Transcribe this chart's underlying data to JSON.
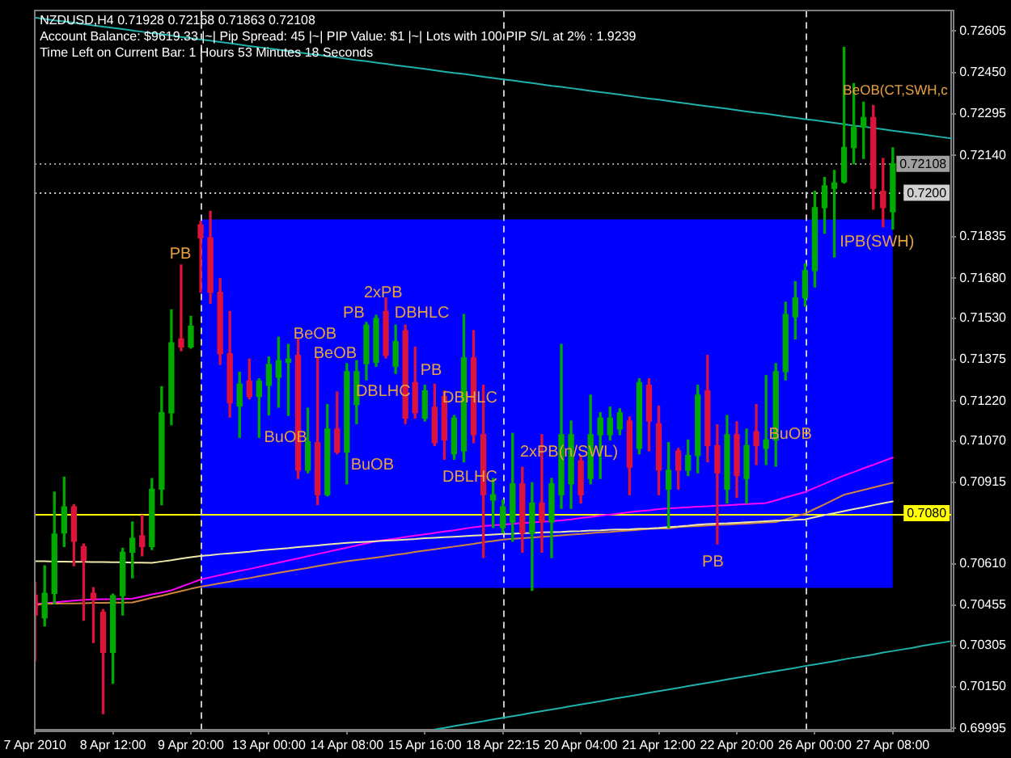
{
  "chart_data": {
    "type": "candlestick",
    "title": "NZDUSD,H4 0.71928 0.72168 0.71863 0.72108",
    "categories": [
      "7 Apr 2010",
      null,
      null,
      null,
      null,
      null,
      null,
      null,
      "8 Apr 12:00",
      null,
      null,
      null,
      null,
      null,
      null,
      null,
      "9 Apr 20:00",
      null,
      null,
      null,
      null,
      null,
      null,
      null,
      "13 Apr 00:00",
      null,
      null,
      null,
      null,
      null,
      null,
      null,
      "14 Apr 08:00",
      null,
      null,
      null,
      null,
      null,
      null,
      null,
      "15 Apr 16:00",
      null,
      null,
      null,
      null,
      null,
      null,
      null,
      "18 Apr 22:15",
      null,
      null,
      null,
      null,
      null,
      null,
      null,
      "20 Apr 04:00",
      null,
      null,
      null,
      null,
      null,
      null,
      null,
      "21 Apr 12:00",
      null,
      null,
      null,
      null,
      null,
      null,
      null,
      "22 Apr 20:00",
      null,
      null,
      null,
      null,
      null,
      null,
      null,
      "26 Apr 00:00",
      null,
      null,
      null,
      null,
      null,
      null,
      null,
      "27 Apr 08:00",
      null,
      null,
      null,
      null,
      null,
      null
    ],
    "ohlc": [
      [
        0.70493,
        0.70542,
        0.70247,
        0.70419
      ],
      [
        0.70408,
        0.70603,
        0.70378,
        0.705
      ],
      [
        0.705,
        0.70879,
        0.7046,
        0.70722
      ],
      [
        0.70726,
        0.70935,
        0.70675,
        0.70824
      ],
      [
        0.70824,
        0.70832,
        0.70603,
        0.70695
      ],
      [
        0.70675,
        0.70685,
        0.70399,
        0.70623
      ],
      [
        0.705,
        0.70521,
        0.70316,
        0.7048
      ],
      [
        0.70429,
        0.70439,
        0.7005,
        0.70279
      ],
      [
        0.70279,
        0.70497,
        0.70163,
        0.70491
      ],
      [
        0.70491,
        0.70669,
        0.70419,
        0.70654
      ],
      [
        0.70654,
        0.70767,
        0.70558,
        0.70706
      ],
      [
        0.70715,
        0.70792,
        0.7064,
        0.70675
      ],
      [
        0.70675,
        0.7093,
        0.70664,
        0.7089
      ],
      [
        0.7089,
        0.71274,
        0.70832,
        0.71176
      ],
      [
        0.71176,
        0.71561,
        0.71131,
        0.71438
      ],
      [
        0.71452,
        0.71729,
        0.71409,
        0.71422
      ],
      [
        0.71422,
        0.71537,
        0.71418,
        0.715
      ],
      [
        0.7188,
        0.71893,
        0.71627,
        0.71831
      ],
      [
        0.71831,
        0.7193,
        0.71586,
        0.71627
      ],
      [
        0.71627,
        0.71678,
        0.71357,
        0.71397
      ],
      [
        0.71397,
        0.71555,
        0.7116,
        0.71213
      ],
      [
        0.71201,
        0.71328,
        0.71084,
        0.71283
      ],
      [
        0.71295,
        0.71377,
        0.71228,
        0.71237
      ],
      [
        0.71237,
        0.71303,
        0.71084,
        0.71295
      ],
      [
        0.71279,
        0.71385,
        0.71168,
        0.71357
      ],
      [
        0.71309,
        0.71459,
        0.71197,
        0.71371
      ],
      [
        0.71365,
        0.71432,
        0.71166,
        0.71377
      ],
      [
        0.71391,
        0.71452,
        0.7093,
        0.70961
      ],
      [
        0.70961,
        0.71193,
        0.70951,
        0.71068
      ],
      [
        0.71064,
        0.71381,
        0.70832,
        0.70869
      ],
      [
        0.70869,
        0.71207,
        0.70865,
        0.71115
      ],
      [
        0.71115,
        0.71254,
        0.71022,
        0.71029
      ],
      [
        0.71029,
        0.7136,
        0.7091,
        0.7133
      ],
      [
        0.71207,
        0.71371,
        0.71135,
        0.7133
      ],
      [
        0.7136,
        0.71514,
        0.71299,
        0.71504
      ],
      [
        0.71365,
        0.71541,
        0.7135,
        0.71529
      ],
      [
        0.71555,
        0.71606,
        0.71381,
        0.71391
      ],
      [
        0.7135,
        0.71504,
        0.71323,
        0.71443
      ],
      [
        0.71483,
        0.71504,
        0.71135,
        0.71156
      ],
      [
        0.71289,
        0.71422,
        0.71156,
        0.71176
      ],
      [
        0.71156,
        0.71279,
        0.71145,
        0.71258
      ],
      [
        0.71197,
        0.71283,
        0.71053,
        0.71064
      ],
      [
        0.71237,
        0.71258,
        0.71002,
        0.71074
      ],
      [
        0.71022,
        0.71166,
        0.71002,
        0.71156
      ],
      [
        0.71033,
        0.71544,
        0.70992,
        0.71381
      ],
      [
        0.71381,
        0.71483,
        0.71064,
        0.71094
      ],
      [
        0.71094,
        0.71279,
        0.70634,
        0.70869
      ],
      [
        0.70849,
        0.7093,
        0.70746,
        0.70869
      ],
      [
        0.70746,
        0.70849,
        0.70726,
        0.70824
      ],
      [
        0.70767,
        0.71099,
        0.70695,
        0.7091
      ],
      [
        0.7091,
        0.70972,
        0.70654,
        0.70726
      ],
      [
        0.70726,
        0.70914,
        0.70511,
        0.70838
      ],
      [
        0.70838,
        0.71094,
        0.70654,
        0.70767
      ],
      [
        0.70767,
        0.7093,
        0.70634,
        0.7091
      ],
      [
        0.70869,
        0.71432,
        0.70818,
        0.71094
      ],
      [
        0.7091,
        0.71145,
        0.70818,
        0.71094
      ],
      [
        0.70996,
        0.71013,
        0.70838,
        0.70869
      ],
      [
        0.7093,
        0.71242,
        0.7091,
        0.71094
      ],
      [
        0.71094,
        0.71176,
        0.7093,
        0.71156
      ],
      [
        0.71094,
        0.71197,
        0.71074,
        0.71156
      ],
      [
        0.71115,
        0.71191,
        0.71094,
        0.71176
      ],
      [
        0.71145,
        0.7116,
        0.70869,
        0.70972
      ],
      [
        0.71043,
        0.71303,
        0.71022,
        0.71289
      ],
      [
        0.71279,
        0.71303,
        0.71033,
        0.71145
      ],
      [
        0.71135,
        0.71201,
        0.70869,
        0.70961
      ],
      [
        0.7089,
        0.71064,
        0.70746,
        0.70961
      ],
      [
        0.71033,
        0.71043,
        0.7089,
        0.70961
      ],
      [
        0.70961,
        0.71074,
        0.70941,
        0.71016
      ],
      [
        0.71016,
        0.71279,
        0.70951,
        0.71242
      ],
      [
        0.71258,
        0.71391,
        0.70992,
        0.71053
      ],
      [
        0.71053,
        0.71131,
        0.70685,
        0.70951
      ],
      [
        0.7089,
        0.71166,
        0.70838,
        0.71094
      ],
      [
        0.71094,
        0.71142,
        0.70859,
        0.70941
      ],
      [
        0.7093,
        0.71115,
        0.70838,
        0.71053
      ],
      [
        0.71105,
        0.71207,
        0.70982,
        0.71053
      ],
      [
        0.71043,
        0.71315,
        0.70982,
        0.71074
      ],
      [
        0.71074,
        0.7136,
        0.70976,
        0.7133
      ],
      [
        0.7133,
        0.7159,
        0.71299,
        0.71544
      ],
      [
        0.71535,
        0.71667,
        0.71452,
        0.71606
      ],
      [
        0.71606,
        0.71733,
        0.71575,
        0.71708
      ],
      [
        0.71708,
        0.72005,
        0.71647,
        0.71944
      ],
      [
        0.71944,
        0.72057,
        0.71848,
        0.72026
      ],
      [
        0.72016,
        0.72083,
        0.71759,
        0.72036
      ],
      [
        0.7204,
        0.72544,
        0.72036,
        0.72169
      ],
      [
        0.72169,
        0.72408,
        0.72108,
        0.72245
      ],
      [
        0.72245,
        0.72339,
        0.72128,
        0.72281
      ],
      [
        0.72281,
        0.72327,
        0.71938,
        0.72016
      ],
      [
        0.72005,
        0.72128,
        0.71872,
        0.71944
      ],
      [
        0.71928,
        0.72168,
        0.71863,
        0.72108
      ],
      null,
      null,
      null,
      null,
      null,
      null
    ],
    "colors": [
      "#dc143c",
      "#00aa00",
      "#00aa00",
      "#00aa00",
      "#dc143c",
      "#dc143c",
      "#dc143c",
      "#dc143c",
      "#00aa00",
      "#00aa00",
      "#00aa00",
      "#dc143c",
      "#00aa00",
      "#00aa00",
      "#00aa00",
      "#dc143c",
      "#00aa00",
      "#dc143c",
      "#dc143c",
      "#dc143c",
      "#dc143c",
      "#00aa00",
      "#dc143c",
      "#00aa00",
      "#00aa00",
      "#00aa00",
      "#00aa00",
      "#dc143c",
      "#00aa00",
      "#dc143c",
      "#00aa00",
      "#dc143c",
      "#00aa00",
      "#00aa00",
      "#00aa00",
      "#00aa00",
      "#dc143c",
      "#00aa00",
      "#dc143c",
      "#dc143c",
      "#00aa00",
      "#dc143c",
      "#dc143c",
      "#00aa00",
      "#00aa00",
      "#dc143c",
      "#dc143c",
      "#00aa00",
      "#00aa00",
      "#00aa00",
      "#dc143c",
      "#00aa00",
      "#dc143c",
      "#00aa00",
      "#00aa00",
      "#00aa00",
      "#dc143c",
      "#00aa00",
      "#00aa00",
      "#00aa00",
      "#00aa00",
      "#dc143c",
      "#00aa00",
      "#dc143c",
      "#dc143c",
      "#00aa00",
      "#dc143c",
      "#00aa00",
      "#00aa00",
      "#dc143c",
      "#dc143c",
      "#00aa00",
      "#dc143c",
      "#00aa00",
      "#dc143c",
      "#00aa00",
      "#00aa00",
      "#00aa00",
      "#00aa00",
      "#00aa00",
      "#00aa00",
      "#00aa00",
      "#00aa00",
      "#00aa00",
      "#00aa00",
      "#00aa00",
      "#dc143c",
      "#dc143c",
      "#00aa00",
      null,
      null,
      null,
      null,
      null,
      null
    ],
    "series": [
      {
        "type": "line",
        "color": "#0000ff",
        "values": [
          null,
          null,
          null,
          null,
          null,
          null,
          null,
          null,
          null,
          null,
          null,
          null,
          null,
          null,
          null,
          null,
          null,
          null,
          null,
          null,
          null,
          null,
          null,
          null,
          null,
          null,
          null,
          null,
          null,
          null,
          null,
          null,
          null,
          null,
          null,
          null,
          null,
          null,
          null,
          null,
          null,
          null,
          null,
          null,
          null,
          null,
          null,
          null,
          null,
          null,
          null,
          null,
          null,
          null,
          null,
          null,
          null,
          null,
          null,
          null,
          null,
          null,
          null,
          null,
          null,
          null,
          null,
          null,
          null,
          null,
          null,
          null,
          null,
          null,
          null,
          null,
          null,
          null,
          null,
          null,
          null,
          null,
          null,
          null,
          null,
          null,
          null,
          null,
          null,
          null,
          null,
          null,
          null,
          null,
          null
        ],
        "upper": [
          null,
          null,
          null,
          null,
          null,
          null,
          null,
          null,
          null,
          null,
          null,
          null,
          null,
          null,
          null,
          null,
          null,
          0.719,
          0.719,
          0.719,
          0.719,
          0.719,
          0.719,
          0.719,
          0.719,
          0.719,
          0.719,
          0.719,
          0.719,
          0.719,
          0.719,
          0.719,
          0.719,
          0.719,
          0.719,
          0.719,
          0.719,
          0.719,
          0.719,
          0.719,
          0.719,
          0.719,
          0.719,
          0.719,
          0.719,
          0.719,
          0.719,
          0.719,
          0.719,
          0.719,
          0.719,
          0.719,
          0.719,
          0.719,
          0.719,
          0.719,
          0.719,
          0.719,
          0.719,
          0.719,
          0.719,
          0.719,
          0.719,
          0.719,
          0.719,
          0.719,
          0.719,
          0.719,
          0.719,
          0.719,
          0.719,
          0.719,
          0.719,
          0.719,
          0.719,
          0.719,
          0.719,
          0.719,
          0.719,
          0.719,
          0.719,
          0.719,
          0.719,
          0.719,
          0.719,
          0.719,
          0.719,
          0.719,
          0.719,
          null,
          null,
          null,
          null,
          null,
          null
        ],
        "lower": [
          null,
          null,
          null,
          null,
          null,
          null,
          null,
          null,
          null,
          null,
          null,
          null,
          null,
          null,
          null,
          null,
          null,
          0.7052,
          0.7052,
          0.7052,
          0.7052,
          0.7052,
          0.7052,
          0.7052,
          0.7052,
          0.7052,
          0.7052,
          0.7052,
          0.7052,
          0.7052,
          0.7052,
          0.7052,
          0.7052,
          0.7052,
          0.7052,
          0.7052,
          0.7052,
          0.7052,
          0.7052,
          0.7052,
          0.7052,
          0.7052,
          0.7052,
          0.7052,
          0.7052,
          0.7052,
          0.7052,
          0.7052,
          0.7052,
          0.7052,
          0.7052,
          0.7052,
          0.7052,
          0.7052,
          0.7052,
          0.7052,
          0.7052,
          0.7052,
          0.7052,
          0.7052,
          0.7052,
          0.7052,
          0.7052,
          0.7052,
          0.7052,
          0.7052,
          0.7052,
          0.7052,
          0.7052,
          0.7052,
          0.7052,
          0.7052,
          0.7052,
          0.7052,
          0.7052,
          0.7052,
          0.7052,
          0.7052,
          0.7052,
          0.7052,
          0.7052,
          0.7052,
          0.7052,
          0.7052,
          0.7052,
          0.7052,
          0.7052,
          0.7052,
          0.7052,
          null,
          null,
          null,
          null,
          null,
          null
        ]
      },
      {
        "type": "line",
        "color": "#ff00ff",
        "values": [
          0.7046,
          0.70463,
          0.70466,
          0.7047,
          0.70473,
          0.70476,
          0.70477,
          0.70478,
          0.70478,
          0.70479,
          0.7048,
          0.70488,
          0.70496,
          0.70503,
          0.70511,
          0.70525,
          0.70538,
          0.70552,
          0.7056,
          0.70568,
          0.70576,
          0.70584,
          0.70591,
          0.70599,
          0.70607,
          0.70615,
          0.70623,
          0.70631,
          0.70639,
          0.70647,
          0.70655,
          0.70663,
          0.70671,
          0.70679,
          0.70687,
          0.70695,
          0.707,
          0.70705,
          0.70711,
          0.70716,
          0.70721,
          0.70726,
          0.70731,
          0.70736,
          0.70742,
          0.70747,
          0.70752,
          0.70755,
          0.70757,
          0.7076,
          0.70763,
          0.70765,
          0.70768,
          0.7077,
          0.70773,
          0.70777,
          0.70782,
          0.70786,
          0.70791,
          0.70795,
          0.70799,
          0.70804,
          0.70808,
          0.70811,
          0.70815,
          0.70818,
          0.7082,
          0.70822,
          0.70824,
          0.70826,
          0.70828,
          0.7083,
          0.70832,
          0.70834,
          0.70836,
          0.70838,
          0.70848,
          0.70859,
          0.70869,
          0.70879,
          0.70895,
          0.7091,
          0.70926,
          0.70941,
          0.70954,
          0.70968,
          0.70981,
          0.70995,
          0.71008,
          null,
          null,
          null,
          null,
          null,
          null
        ]
      },
      {
        "type": "line",
        "color": "#cd853f",
        "values": [
          0.70455,
          0.70461,
          0.70461,
          0.70462,
          0.70462,
          0.70463,
          0.70464,
          0.70464,
          0.70465,
          0.70465,
          0.70466,
          0.70474,
          0.70483,
          0.70491,
          0.705,
          0.70508,
          0.70517,
          0.70525,
          0.70531,
          0.70538,
          0.70544,
          0.70551,
          0.70557,
          0.70564,
          0.7057,
          0.70577,
          0.70583,
          0.70589,
          0.70595,
          0.70602,
          0.70608,
          0.70614,
          0.7062,
          0.70625,
          0.70629,
          0.70634,
          0.70639,
          0.70644,
          0.70649,
          0.70655,
          0.7066,
          0.70665,
          0.7067,
          0.70675,
          0.7068,
          0.70685,
          0.70691,
          0.70696,
          0.70701,
          0.70704,
          0.70706,
          0.70709,
          0.70712,
          0.70714,
          0.70717,
          0.7072,
          0.70722,
          0.70725,
          0.70728,
          0.7073,
          0.70733,
          0.70735,
          0.70738,
          0.70741,
          0.70743,
          0.70743,
          0.70748,
          0.7075,
          0.70752,
          0.70754,
          0.70756,
          0.70757,
          0.70759,
          0.70761,
          0.70763,
          0.70765,
          0.70767,
          0.70777,
          0.70788,
          0.70798,
          0.70816,
          0.70833,
          0.70851,
          0.70869,
          0.70878,
          0.70887,
          0.70896,
          0.70905,
          0.70914,
          null,
          null,
          null,
          null,
          null,
          null
        ]
      },
      {
        "type": "line",
        "color": "#eee8aa",
        "values": [
          0.7062,
          0.7062,
          0.70619,
          0.70619,
          0.70618,
          0.70618,
          0.70617,
          0.70617,
          0.70616,
          0.70616,
          0.70615,
          0.70615,
          0.70614,
          0.70619,
          0.70624,
          0.7063,
          0.70635,
          0.7064,
          0.70643,
          0.70647,
          0.7065,
          0.70653,
          0.70656,
          0.7066,
          0.70663,
          0.70666,
          0.70669,
          0.70673,
          0.70676,
          0.70679,
          0.70683,
          0.70686,
          0.70689,
          0.70691,
          0.70693,
          0.70695,
          0.70697,
          0.70699,
          0.70701,
          0.70703,
          0.70706,
          0.70708,
          0.7071,
          0.70712,
          0.70714,
          0.70716,
          0.70718,
          0.7072,
          0.70722,
          0.70723,
          0.70725,
          0.70726,
          0.70728,
          0.70729,
          0.7073,
          0.70732,
          0.70733,
          0.70735,
          0.70736,
          0.70738,
          0.70739,
          0.7074,
          0.70742,
          0.70743,
          0.70745,
          0.70748,
          0.7075,
          0.70753,
          0.70757,
          0.70759,
          0.70761,
          0.70762,
          0.70764,
          0.70766,
          0.70768,
          0.7077,
          0.70772,
          0.70773,
          0.70775,
          0.70777,
          0.70785,
          0.70793,
          0.708,
          0.70808,
          0.70815,
          0.70822,
          0.7083,
          0.70837,
          0.70844,
          null,
          null,
          null,
          null,
          null,
          null
        ]
      },
      {
        "type": "line",
        "color": "#20b2aa",
        "values": [
          0.72655,
          0.7265,
          0.72645,
          0.72641,
          0.72636,
          0.72631,
          0.72626,
          0.72621,
          0.72617,
          0.72612,
          0.72607,
          0.72602,
          0.72597,
          0.72593,
          0.72588,
          0.72583,
          0.72578,
          0.72573,
          0.72569,
          0.72564,
          0.72559,
          0.72554,
          0.72549,
          0.72544,
          0.7254,
          0.72535,
          0.7253,
          0.72525,
          0.7252,
          0.72516,
          0.72511,
          0.72506,
          0.72501,
          0.72496,
          0.72492,
          0.72487,
          0.72482,
          0.72477,
          0.72472,
          0.72468,
          0.72463,
          0.72458,
          0.72453,
          0.72448,
          0.72444,
          0.72439,
          0.72434,
          0.72429,
          0.72424,
          0.7242,
          0.72415,
          0.7241,
          0.72405,
          0.724,
          0.72396,
          0.72391,
          0.72386,
          0.72381,
          0.72376,
          0.72372,
          0.72367,
          0.72362,
          0.72357,
          0.72352,
          0.72348,
          0.72343,
          0.72338,
          0.72333,
          0.72328,
          0.72323,
          0.72319,
          0.72314,
          0.72309,
          0.72304,
          0.72299,
          0.72295,
          0.7229,
          0.72285,
          0.7228,
          0.72275,
          0.72271,
          0.72266,
          0.72261,
          0.72256,
          0.72251,
          0.72247,
          0.72242,
          0.72237,
          0.72232,
          0.72227,
          0.72223,
          0.72218,
          0.72213,
          0.72208,
          0.72203
        ]
      },
      {
        "type": "line",
        "color": "#20b2aa",
        "values": [
          null,
          null,
          null,
          null,
          null,
          null,
          null,
          null,
          null,
          null,
          null,
          null,
          null,
          null,
          null,
          null,
          null,
          null,
          null,
          null,
          null,
          null,
          null,
          null,
          null,
          null,
          null,
          null,
          null,
          null,
          null,
          null,
          null,
          null,
          null,
          null,
          null,
          null,
          null,
          null,
          null,
          0.6999,
          0.69996,
          0.70003,
          0.70009,
          0.70015,
          0.70021,
          0.70028,
          0.70034,
          0.7004,
          0.70046,
          0.70053,
          0.70059,
          0.70065,
          0.70071,
          0.70078,
          0.70084,
          0.7009,
          0.70096,
          0.70103,
          0.70109,
          0.70115,
          0.70121,
          0.70128,
          0.70134,
          0.7014,
          0.70146,
          0.70153,
          0.70159,
          0.70165,
          0.70171,
          0.70178,
          0.70184,
          0.7019,
          0.70196,
          0.70203,
          0.70209,
          0.70215,
          0.70221,
          0.70228,
          0.70234,
          0.7024,
          0.70246,
          0.70253,
          0.70259,
          0.70265,
          0.70271,
          0.70278,
          0.70284,
          0.7029,
          0.70296,
          0.70303,
          0.70309,
          0.70315,
          0.70321
        ]
      }
    ],
    "ylim": [
      0.6999,
      0.7268
    ],
    "yticks": [
      0.69995,
      {
        "value": 0.7015,
        "label": "0.70150"
      },
      0.70305,
      0.70455,
      {
        "value": 0.7061,
        "label": "0.70610"
      },
      0.70915,
      {
        "value": 0.7107,
        "label": "0.71070"
      },
      {
        "value": 0.7122,
        "label": "0.71220"
      },
      0.71375,
      {
        "value": 0.7153,
        "label": "0.71530"
      },
      {
        "value": 0.7168,
        "label": "0.71680"
      },
      0.71835,
      {
        "value": 0.7214,
        "label": "0.72140"
      },
      0.72295,
      {
        "value": 0.7245,
        "label": "0.72450"
      },
      0.72605
    ],
    "ref_lines": [
      {
        "axis": "y",
        "value": 0.72108,
        "label": "0.72108",
        "color": "#a0a0a0",
        "line_style": "dotted"
      },
      {
        "axis": "y",
        "value": 0.72,
        "label": "0.7200",
        "color": "#d0d0d0",
        "line_style": "dotted"
      },
      {
        "axis": "y",
        "value": 0.708,
        "label": "0.7080",
        "color": "#ffff00"
      }
    ],
    "annotations": [
      "Account Balance: $9619.33 |~| Pip Spread: 45 |~| PIP Value: $1 |~| Lots with 100 PIP S/L at 2% : 1.9239",
      "Time Left on Current Bar: 1 Hours 53 Minutes 18 Seconds",
      "PB",
      "BeOB",
      "BeOB",
      "PB",
      "2xPB",
      "DBHLC",
      "DBLHC",
      "BuOB",
      "BuOB",
      "PB",
      "DBHLC",
      "DBLHC",
      "2xPB(n/SWL)",
      "BuOB",
      "PB",
      "IPB(SWH)",
      "BeOB(CT,SWH,c"
    ]
  }
}
